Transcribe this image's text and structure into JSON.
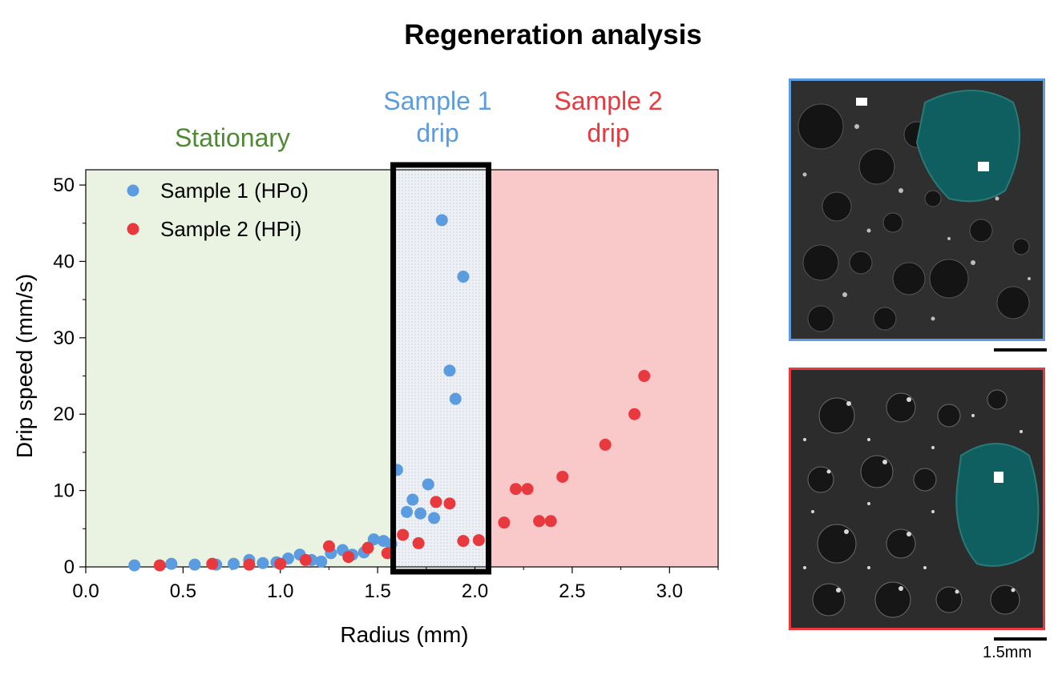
{
  "figure_title": "Regeneration analysis",
  "region_labels": {
    "stationary": "Stationary",
    "sample1_line1": "Sample 1",
    "sample1_line2": "drip",
    "sample2_line1": "Sample 2",
    "sample2_line2": "drip"
  },
  "colors": {
    "sample1": "#5b9be0",
    "sample2": "#e8393f",
    "stationary_text": "#4e8a33",
    "stationary_bg": "#eaf3e2",
    "sample1_bg": "#edf0f4",
    "sample2_bg": "#f9c9c9",
    "highlight_box": "#000000"
  },
  "scale_bar_label": "1.5mm",
  "photos": [
    {
      "label": "Sample 1 surface image",
      "border_color": "#5b9be0",
      "icon": "droplet-surface-photo"
    },
    {
      "label": "Sample 2 surface image",
      "border_color": "#e8393f",
      "icon": "droplet-surface-photo"
    }
  ],
  "chart_data": {
    "type": "scatter",
    "title": "",
    "xlabel": "Radius (mm)",
    "ylabel": "Drip speed (mm/s)",
    "xlim": [
      0.0,
      3.25
    ],
    "ylim": [
      0,
      52
    ],
    "xticks": [
      "0.0",
      "0.5",
      "1.0",
      "1.5",
      "2.0",
      "2.5",
      "3.0"
    ],
    "yticks": [
      "0",
      "10",
      "20",
      "30",
      "40",
      "50"
    ],
    "grid": false,
    "legend_position": "top-left",
    "regions": [
      {
        "name": "Stationary",
        "x_range": [
          0.0,
          1.58
        ]
      },
      {
        "name": "Sample 1 drip",
        "x_range": [
          1.58,
          2.07
        ]
      },
      {
        "name": "Sample 2 drip",
        "x_range": [
          2.07,
          3.25
        ]
      }
    ],
    "series": [
      {
        "name": "Sample 1 (HPo)",
        "points": [
          [
            0.25,
            0.2
          ],
          [
            0.44,
            0.4
          ],
          [
            0.56,
            0.3
          ],
          [
            0.67,
            0.3
          ],
          [
            0.76,
            0.4
          ],
          [
            0.84,
            0.9
          ],
          [
            0.91,
            0.5
          ],
          [
            0.98,
            0.6
          ],
          [
            1.04,
            1.1
          ],
          [
            1.1,
            1.6
          ],
          [
            1.16,
            0.9
          ],
          [
            1.21,
            0.7
          ],
          [
            1.26,
            1.8
          ],
          [
            1.32,
            2.2
          ],
          [
            1.37,
            1.6
          ],
          [
            1.43,
            1.9
          ],
          [
            1.48,
            3.6
          ],
          [
            1.53,
            3.4
          ],
          [
            1.57,
            3.0
          ],
          [
            1.6,
            12.7
          ],
          [
            1.65,
            7.2
          ],
          [
            1.68,
            8.8
          ],
          [
            1.72,
            7.0
          ],
          [
            1.76,
            10.8
          ],
          [
            1.79,
            6.4
          ],
          [
            1.83,
            45.4
          ],
          [
            1.87,
            25.7
          ],
          [
            1.9,
            22.0
          ],
          [
            1.94,
            38.0
          ]
        ]
      },
      {
        "name": "Sample 2 (HPi)",
        "points": [
          [
            0.38,
            0.2
          ],
          [
            0.65,
            0.4
          ],
          [
            0.84,
            0.3
          ],
          [
            1.0,
            0.4
          ],
          [
            1.13,
            0.9
          ],
          [
            1.25,
            2.7
          ],
          [
            1.35,
            1.3
          ],
          [
            1.45,
            2.5
          ],
          [
            1.55,
            1.8
          ],
          [
            1.63,
            4.2
          ],
          [
            1.71,
            3.1
          ],
          [
            1.8,
            8.5
          ],
          [
            1.87,
            8.3
          ],
          [
            1.94,
            3.4
          ],
          [
            2.02,
            3.5
          ],
          [
            2.15,
            5.8
          ],
          [
            2.21,
            10.2
          ],
          [
            2.27,
            10.2
          ],
          [
            2.33,
            6.0
          ],
          [
            2.39,
            6.0
          ],
          [
            2.45,
            11.8
          ],
          [
            2.67,
            16.0
          ],
          [
            2.82,
            20.0
          ],
          [
            2.87,
            25.0
          ]
        ]
      }
    ]
  }
}
